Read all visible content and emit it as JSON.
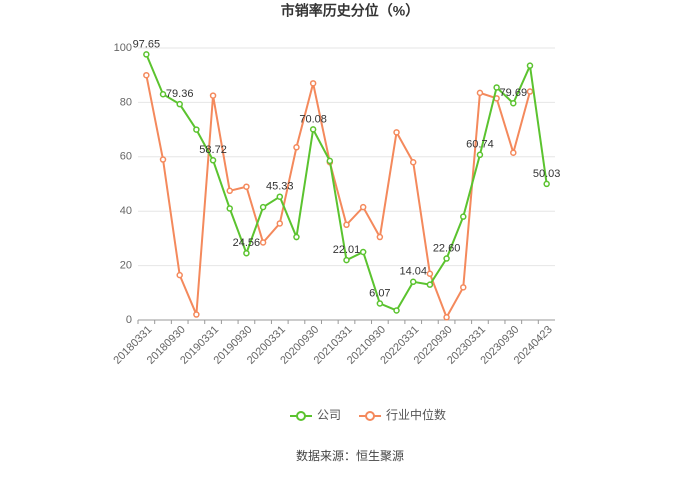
{
  "chart_data": {
    "type": "line",
    "title": "市销率历史分位（%）",
    "source": "数据来源：恒生聚源",
    "categories": [
      "20180331",
      null,
      "20180930",
      null,
      "20190331",
      null,
      "20190930",
      null,
      "20200331",
      null,
      "20200930",
      null,
      "20210331",
      null,
      "20210930",
      null,
      "20220331",
      null,
      "20220930",
      null,
      "20230331",
      null,
      "20230930",
      null,
      "20240423"
    ],
    "ylim": [
      0,
      100
    ],
    "yticks": [
      0,
      20,
      40,
      60,
      80,
      100
    ],
    "grid": true,
    "legend": "bottom",
    "series": [
      {
        "name": "公司",
        "color": "#5bc32f",
        "values": [
          97.65,
          83,
          79.36,
          70,
          58.72,
          41,
          24.56,
          41.5,
          45.33,
          30.5,
          70.08,
          58.5,
          22.01,
          25,
          6.07,
          3.5,
          14.04,
          13,
          22.6,
          38,
          60.74,
          85.5,
          79.69,
          93.5,
          50.03
        ],
        "value_labels": [
          "97.65",
          null,
          "79.36",
          null,
          "58.72",
          null,
          "24.56",
          null,
          "45.33",
          null,
          "70.08",
          null,
          "22.01",
          null,
          "6.07",
          null,
          "14.04",
          null,
          "22.60",
          null,
          "60.74",
          null,
          "79.69",
          null,
          "50.03"
        ]
      },
      {
        "name": "行业中位数",
        "color": "#f4895c",
        "values": [
          90,
          59,
          16.5,
          2,
          82.5,
          47.5,
          49,
          28.5,
          35.5,
          63.5,
          87,
          58,
          35,
          41.5,
          30.5,
          69,
          58,
          17,
          1,
          12,
          83.5,
          81.5,
          61.5,
          84,
          null
        ]
      }
    ]
  }
}
